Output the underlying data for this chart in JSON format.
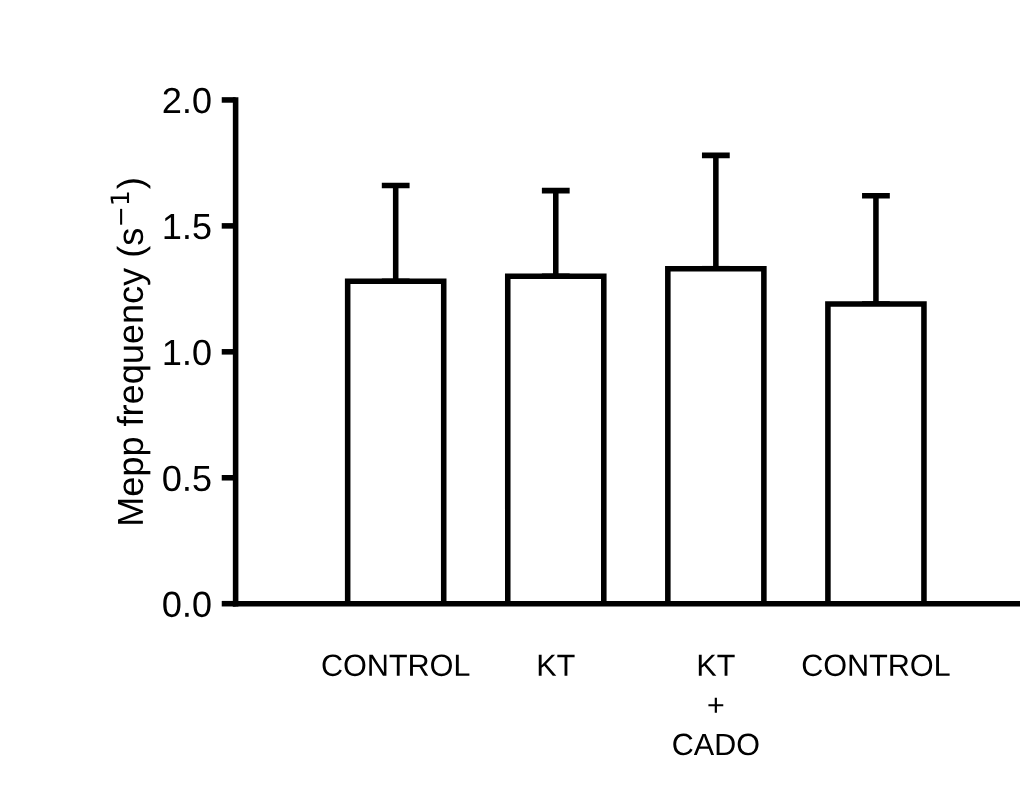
{
  "chart_data": {
    "type": "bar",
    "ylabel": "Mepp frequency (s$^{−1}$)",
    "categories": [
      "CONTROL",
      "KT",
      "KT\n+\nCADO",
      "CONTROL"
    ],
    "values": [
      1.28,
      1.3,
      1.33,
      1.19
    ],
    "errors": [
      [
        1.28,
        1.66
      ],
      [
        1.3,
        1.64
      ],
      [
        1.33,
        1.78
      ],
      [
        1.19,
        1.62
      ]
    ],
    "color": "#ffffff",
    "ylim": [
      0,
      2.0
    ],
    "yticks": [
      {
        "value": 0,
        "label": "0.0"
      },
      {
        "value": 0.5,
        "label": "0.5"
      },
      {
        "value": 1.0,
        "label": "1.0"
      },
      {
        "value": 1.5,
        "label": "1.5"
      },
      {
        "value": 2.0,
        "label": "2.0"
      }
    ],
    "grid": false,
    "legend": false
  }
}
